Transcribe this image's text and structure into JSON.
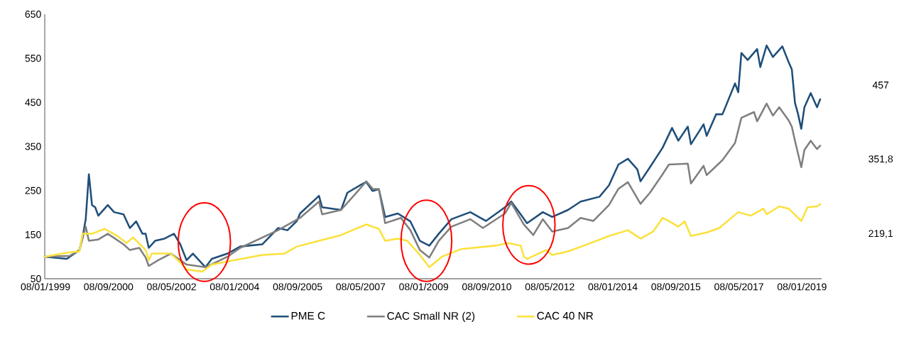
{
  "chart_data": {
    "type": "line",
    "xlim": [
      "1999-01-01",
      "2019-07-15"
    ],
    "ylim": [
      50,
      650
    ],
    "yticks": [
      50,
      150,
      250,
      350,
      450,
      550,
      650
    ],
    "xticks": [
      {
        "value": "1999-01-08",
        "label": "08/01/1999"
      },
      {
        "value": "2000-09-08",
        "label": "08/09/2000"
      },
      {
        "value": "2002-05-08",
        "label": "08/05/2002"
      },
      {
        "value": "2004-01-08",
        "label": "08/01/2004"
      },
      {
        "value": "2005-09-08",
        "label": "08/09/2005"
      },
      {
        "value": "2007-05-08",
        "label": "08/05/2007"
      },
      {
        "value": "2009-01-08",
        "label": "08/01/2009"
      },
      {
        "value": "2010-09-08",
        "label": "08/09/2010"
      },
      {
        "value": "2012-05-08",
        "label": "08/05/2012"
      },
      {
        "value": "2014-01-08",
        "label": "08/01/2014"
      },
      {
        "value": "2015-09-08",
        "label": "08/09/2015"
      },
      {
        "value": "2017-05-08",
        "label": "08/05/2017"
      },
      {
        "value": "2019-01-08",
        "label": "08/01/2019"
      }
    ],
    "grid": false,
    "legend": "bottom",
    "marker": "none",
    "line_style": "solid",
    "series": [
      {
        "name": "PME C",
        "color": "#1f4e79",
        "x": [
          "1999-01",
          "1999-08",
          "1999-12",
          "2000-01",
          "2000-02",
          "2000-03",
          "2000-04",
          "2000-05",
          "2000-06",
          "2000-09",
          "2000-11",
          "2001-02",
          "2001-04",
          "2001-06",
          "2001-08",
          "2001-09",
          "2001-10",
          "2001-12",
          "2002-03",
          "2002-06",
          "2002-08",
          "2002-10",
          "2002-12",
          "2003-04",
          "2003-06",
          "2003-11",
          "2004-03",
          "2004-10",
          "2005-03",
          "2005-06",
          "2005-09",
          "2005-10",
          "2006-04",
          "2006-05",
          "2006-11",
          "2007-01",
          "2007-06",
          "2007-07",
          "2007-09",
          "2007-11",
          "2008-01",
          "2008-05",
          "2008-09",
          "2008-12",
          "2009-03",
          "2009-06",
          "2009-10",
          "2010-04",
          "2010-09",
          "2011-03",
          "2011-05",
          "2011-08",
          "2011-10",
          "2012-03",
          "2012-06",
          "2012-11",
          "2013-03",
          "2013-09",
          "2013-12",
          "2014-03",
          "2014-06",
          "2014-09",
          "2014-10",
          "2015-01",
          "2015-05",
          "2015-08",
          "2015-10",
          "2016-01",
          "2016-02",
          "2016-06",
          "2016-07",
          "2016-10",
          "2016-12",
          "2017-04",
          "2017-05",
          "2017-06",
          "2017-08",
          "2017-11",
          "2017-12",
          "2018-02",
          "2018-04",
          "2018-07",
          "2018-09",
          "2018-10",
          "2018-11",
          "2018-12",
          "2019-01",
          "2019-02",
          "2019-04",
          "2019-06",
          "2019-07"
        ],
        "values": [
          100,
          95,
          115,
          144,
          185,
          287,
          217,
          212,
          193,
          217,
          201,
          196,
          165,
          180,
          152,
          152,
          120,
          136,
          141,
          152,
          128,
          92,
          107,
          76,
          95,
          107,
          123,
          128,
          165,
          160,
          181,
          198,
          238,
          212,
          206,
          245,
          266,
          269,
          249,
          253,
          190,
          198,
          180,
          136,
          125,
          152,
          185,
          201,
          181,
          212,
          225,
          196,
          176,
          201,
          190,
          206,
          225,
          236,
          262,
          309,
          322,
          298,
          271,
          303,
          347,
          392,
          363,
          395,
          355,
          400,
          374,
          423,
          423,
          493,
          473,
          562,
          546,
          571,
          530,
          579,
          553,
          577,
          541,
          525,
          449,
          423,
          390,
          439,
          471,
          439,
          457
        ]
      },
      {
        "name": "CAC Small NR (2)",
        "color": "#7f7f7f",
        "x": [
          "1999-01",
          "1999-09",
          "1999-12",
          "2000-02",
          "2000-03",
          "2000-06",
          "2000-09",
          "2001-02",
          "2001-04",
          "2001-07",
          "2001-09",
          "2001-10",
          "2002-01",
          "2002-05",
          "2002-10",
          "2003-04",
          "2003-11",
          "2004-03",
          "2005-03",
          "2005-10",
          "2006-04",
          "2006-05",
          "2006-11",
          "2007-04",
          "2007-07",
          "2007-09",
          "2007-11",
          "2008-01",
          "2008-06",
          "2008-09",
          "2008-12",
          "2009-03",
          "2009-06",
          "2009-10",
          "2010-04",
          "2010-08",
          "2011-03",
          "2011-05",
          "2011-09",
          "2011-12",
          "2012-03",
          "2012-06",
          "2012-11",
          "2013-03",
          "2013-07",
          "2013-12",
          "2014-03",
          "2014-06",
          "2014-10",
          "2015-01",
          "2015-05",
          "2015-07",
          "2016-01",
          "2016-02",
          "2016-06",
          "2016-07",
          "2016-12",
          "2017-04",
          "2017-06",
          "2017-10",
          "2017-11",
          "2018-02",
          "2018-04",
          "2018-06",
          "2018-09",
          "2018-10",
          "2018-11",
          "2019-01",
          "2019-02",
          "2019-04",
          "2019-06",
          "2019-07"
        ],
        "values": [
          100,
          102,
          115,
          168,
          136,
          139,
          152,
          128,
          115,
          120,
          98,
          79,
          92,
          107,
          82,
          76,
          100,
          120,
          160,
          188,
          225,
          196,
          206,
          246,
          271,
          254,
          253,
          176,
          188,
          160,
          115,
          98,
          136,
          168,
          185,
          165,
          198,
          222,
          173,
          149,
          185,
          157,
          165,
          188,
          181,
          217,
          254,
          269,
          220,
          245,
          287,
          309,
          311,
          266,
          306,
          285,
          319,
          358,
          415,
          428,
          407,
          447,
          420,
          439,
          409,
          395,
          363,
          303,
          342,
          363,
          344,
          351.8
        ]
      },
      {
        "name": "CAC 40 NR",
        "color": "#fbe13c",
        "x": [
          "1999-01",
          "1999-05",
          "1999-09",
          "1999-12",
          "2000-01",
          "2000-04",
          "2000-08",
          "2000-12",
          "2001-03",
          "2001-05",
          "2001-09",
          "2001-10",
          "2001-11",
          "2002-05",
          "2002-08",
          "2002-10",
          "2003-03",
          "2003-06",
          "2004-01",
          "2004-10",
          "2005-05",
          "2005-09",
          "2006-04",
          "2006-11",
          "2007-07",
          "2007-11",
          "2008-01",
          "2008-05",
          "2008-08",
          "2008-12",
          "2009-03",
          "2009-07",
          "2010-01",
          "2010-12",
          "2011-04",
          "2011-08",
          "2011-09",
          "2011-10",
          "2012-04",
          "2012-06",
          "2012-11",
          "2013-07",
          "2013-12",
          "2014-06",
          "2014-10",
          "2015-02",
          "2015-05",
          "2015-07",
          "2015-10",
          "2015-12",
          "2016-02",
          "2016-07",
          "2016-11",
          "2017-05",
          "2017-09",
          "2018-01",
          "2018-02",
          "2018-06",
          "2018-09",
          "2019-01",
          "2019-03",
          "2019-06",
          "2019-07"
        ],
        "values": [
          100,
          105,
          110,
          112,
          152,
          152,
          163,
          147,
          131,
          144,
          115,
          92,
          107,
          107,
          87,
          71,
          66,
          82,
          92,
          104,
          107,
          123,
          136,
          149,
          173,
          163,
          136,
          141,
          136,
          104,
          76,
          100,
          117,
          125,
          131,
          125,
          100,
          95,
          115,
          104,
          112,
          133,
          147,
          160,
          141,
          157,
          188,
          181,
          168,
          180,
          147,
          155,
          165,
          201,
          193,
          209,
          196,
          214,
          209,
          181,
          212,
          214,
          219.1
        ]
      }
    ],
    "annotations": [
      "457",
      "351,8",
      "219,1"
    ]
  }
}
